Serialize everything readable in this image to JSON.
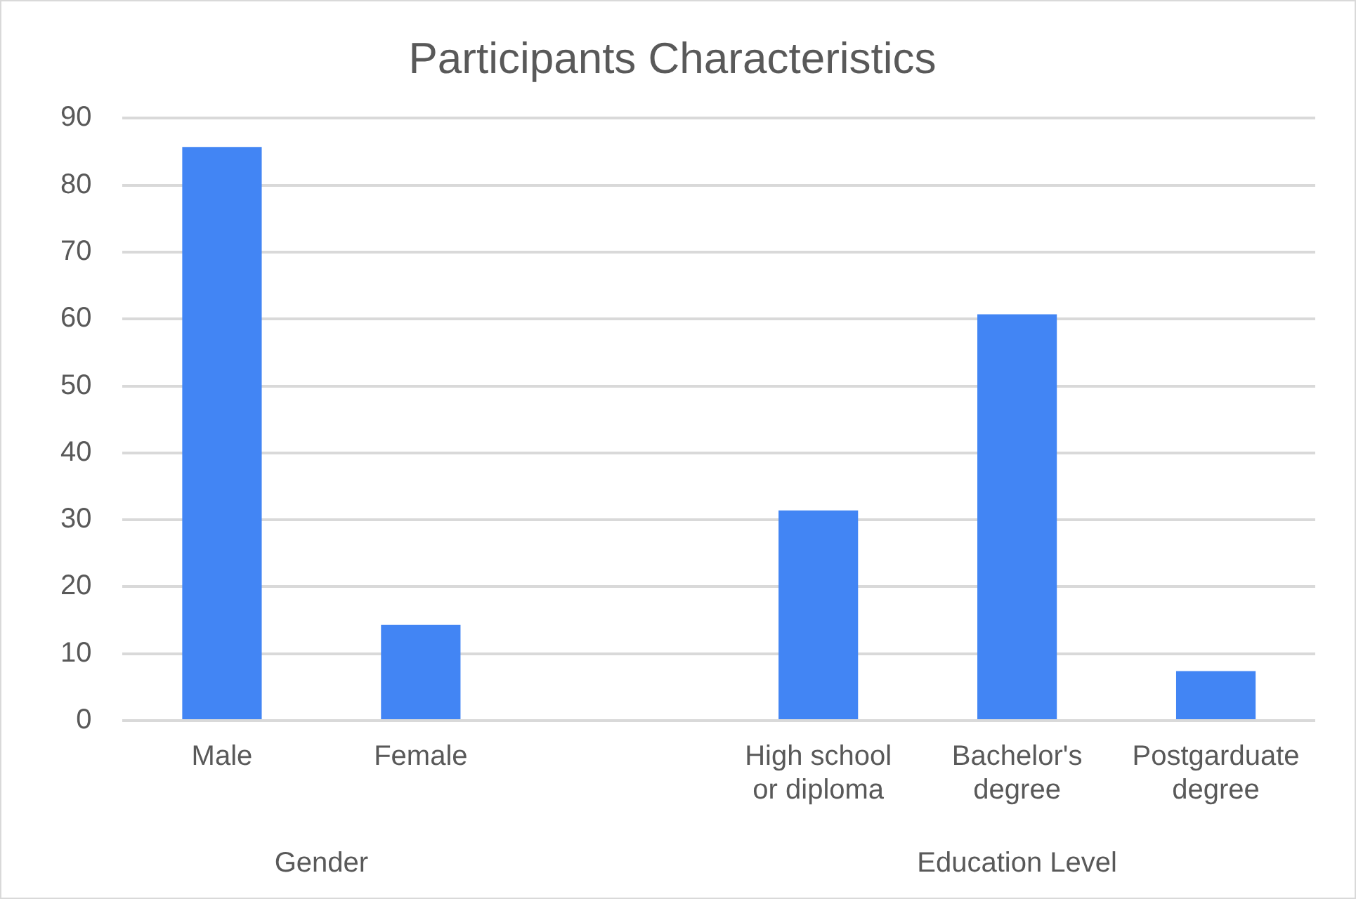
{
  "chart_data": {
    "type": "bar",
    "title": "Participants Characteristics",
    "categories": [
      "Male",
      "Female",
      null,
      "High school or diploma",
      "Bachelor's degree",
      "Postgarduate degree"
    ],
    "values": [
      85.7,
      14.3,
      null,
      31.4,
      60.7,
      7.4
    ],
    "color": "#4285f4",
    "ylim": [
      0,
      90
    ],
    "yticks": [
      0,
      10,
      20,
      30,
      40,
      50,
      60,
      70,
      80,
      90
    ],
    "grid": "y",
    "legend": false,
    "annotations": [
      "Gender",
      "Education Level"
    ]
  }
}
